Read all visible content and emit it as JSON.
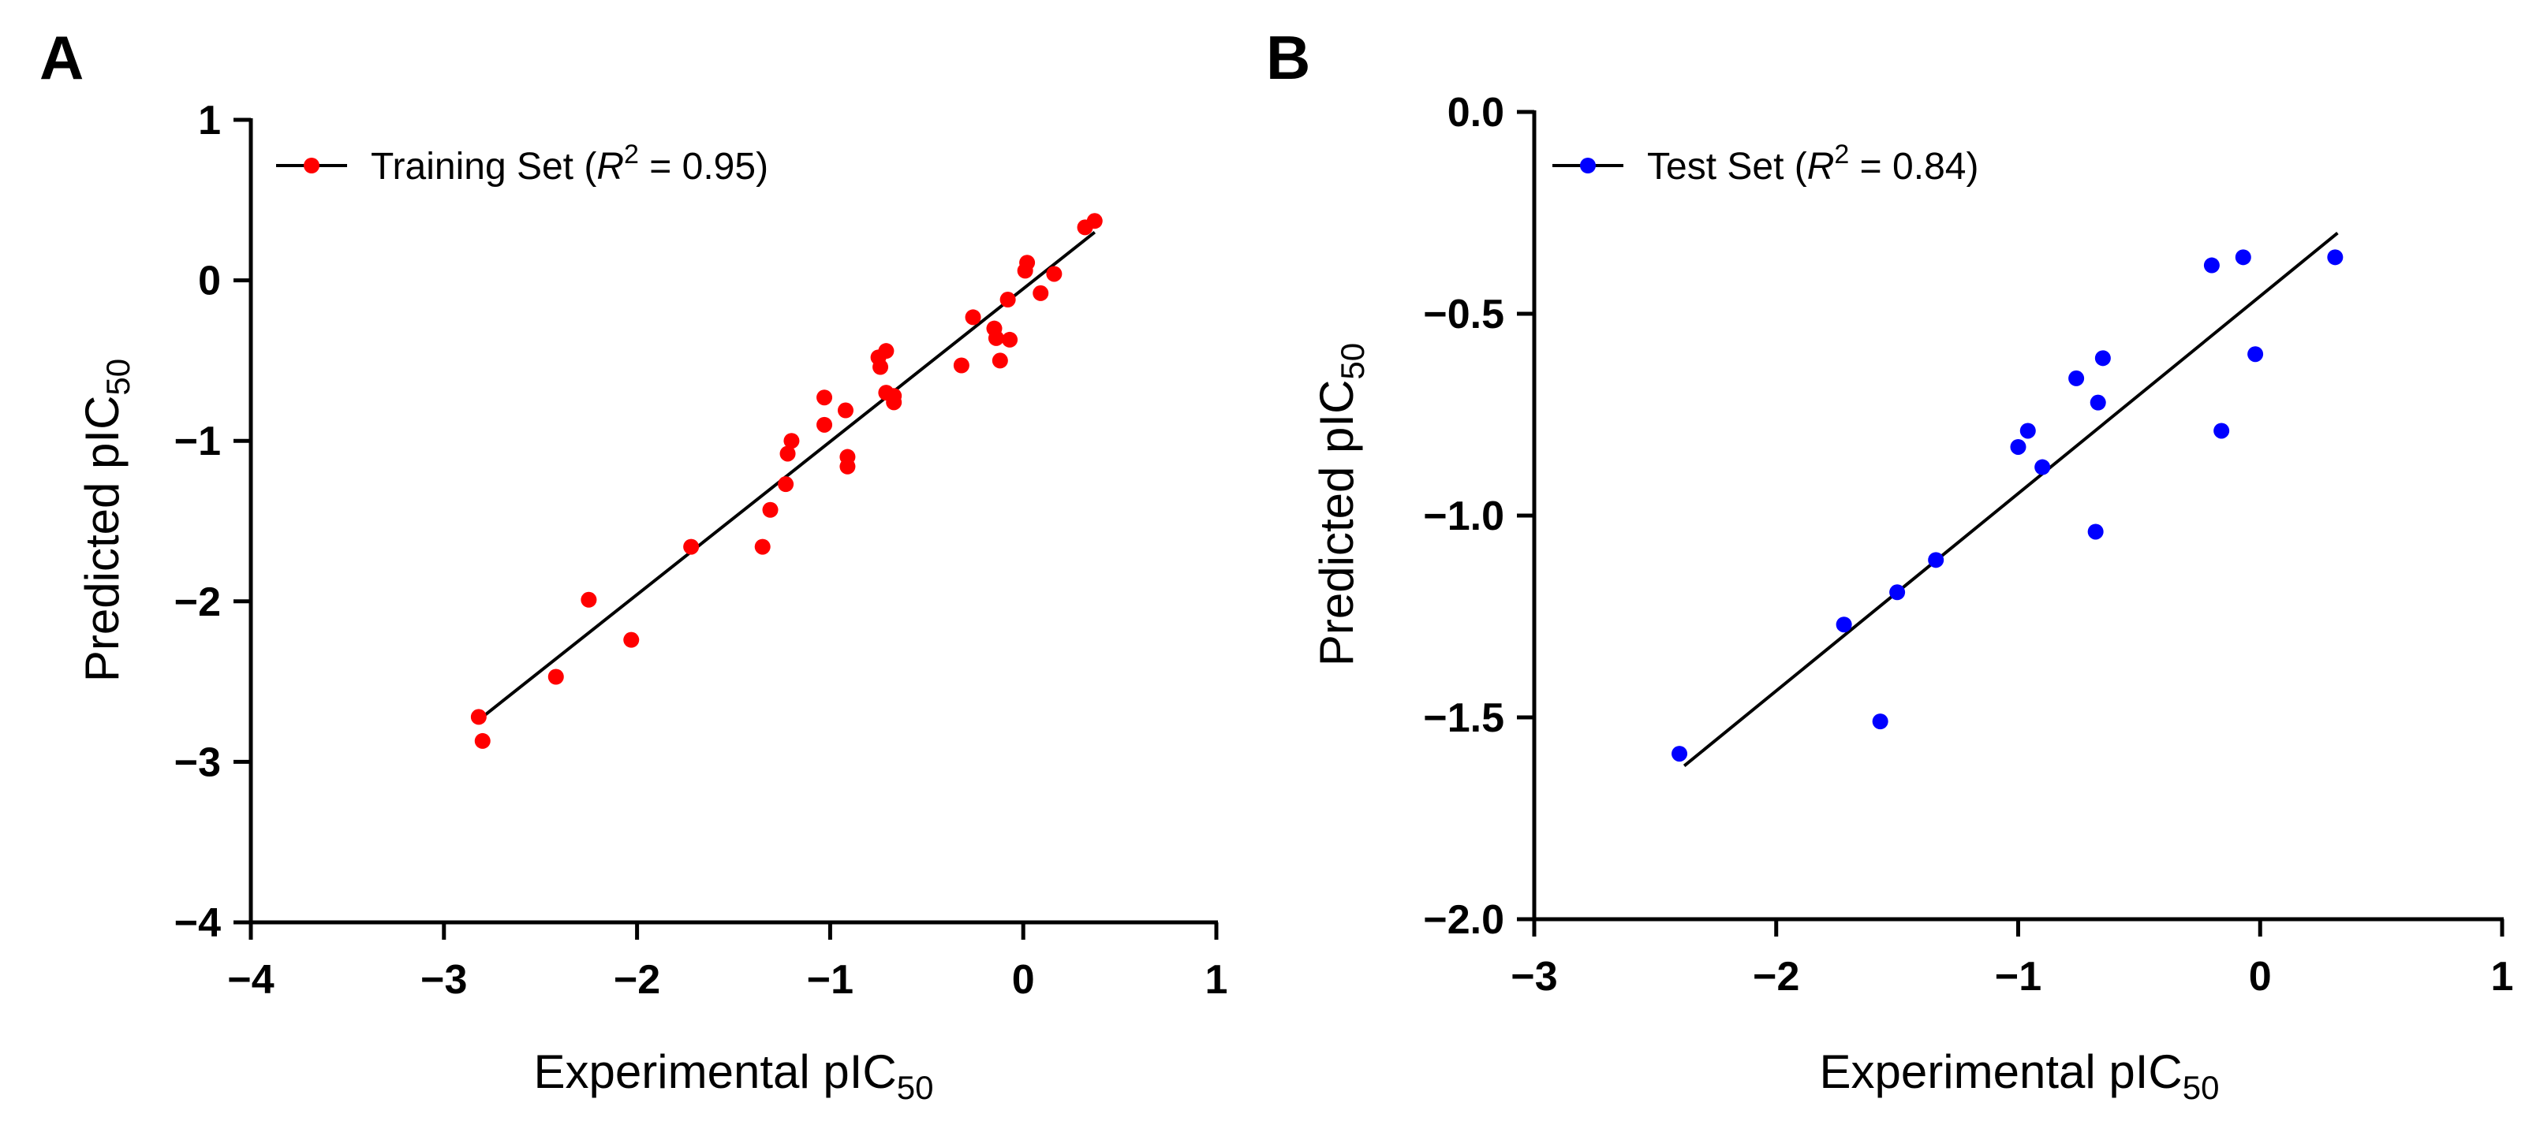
{
  "chart_data": [
    {
      "panel": "A",
      "type": "scatter",
      "xlabel": "Experimental pIC",
      "xlabel_sub": "50",
      "ylabel": "Predicted pIC",
      "ylabel_sub": "50",
      "xlim": [
        -4,
        1
      ],
      "ylim": [
        -4,
        1
      ],
      "xticks": [
        -4,
        -3,
        -2,
        -1,
        0,
        1
      ],
      "yticks": [
        -4,
        -3,
        -2,
        -1,
        0,
        1
      ],
      "xtick_labels": [
        "−4",
        "−3",
        "−2",
        "−1",
        "0",
        "1"
      ],
      "ytick_labels": [
        "−4",
        "−3",
        "−2",
        "−1",
        "0",
        "1"
      ],
      "color": "#ff0000",
      "legend": {
        "label_prefix": "Training Set (",
        "r": "R",
        "sup": "2",
        "label_suffix": " = 0.95)"
      },
      "fit_line": {
        "x": [
          -2.8,
          0.37
        ],
        "y": [
          -2.72,
          0.3
        ]
      },
      "points": [
        [
          -2.82,
          -2.72
        ],
        [
          -2.8,
          -2.87
        ],
        [
          -2.42,
          -2.47
        ],
        [
          -2.25,
          -1.99
        ],
        [
          -2.03,
          -2.24
        ],
        [
          -1.72,
          -1.66
        ],
        [
          -1.35,
          -1.66
        ],
        [
          -1.31,
          -1.43
        ],
        [
          -1.23,
          -1.27
        ],
        [
          -1.22,
          -1.08
        ],
        [
          -1.2,
          -1.0
        ],
        [
          -1.03,
          -0.73
        ],
        [
          -1.03,
          -0.9
        ],
        [
          -0.92,
          -0.81
        ],
        [
          -0.91,
          -1.1
        ],
        [
          -0.91,
          -1.16
        ],
        [
          -0.75,
          -0.48
        ],
        [
          -0.74,
          -0.54
        ],
        [
          -0.71,
          -0.44
        ],
        [
          -0.71,
          -0.7
        ],
        [
          -0.67,
          -0.72
        ],
        [
          -0.67,
          -0.76
        ],
        [
          -0.32,
          -0.53
        ],
        [
          -0.26,
          -0.23
        ],
        [
          -0.15,
          -0.3
        ],
        [
          -0.14,
          -0.36
        ],
        [
          -0.12,
          -0.5
        ],
        [
          -0.08,
          -0.12
        ],
        [
          -0.07,
          -0.37
        ],
        [
          0.01,
          0.06
        ],
        [
          0.02,
          0.11
        ],
        [
          0.09,
          -0.08
        ],
        [
          0.16,
          0.04
        ],
        [
          0.32,
          0.33
        ],
        [
          0.37,
          0.37
        ]
      ]
    },
    {
      "panel": "B",
      "type": "scatter",
      "xlabel": "Experimental pIC",
      "xlabel_sub": "50",
      "ylabel": "Predicted pIC",
      "ylabel_sub": "50",
      "xlim": [
        -3,
        1
      ],
      "ylim": [
        -2,
        0
      ],
      "xticks": [
        -3,
        -2,
        -1,
        0,
        1
      ],
      "yticks": [
        -2,
        -1.5,
        -1,
        -0.5,
        0
      ],
      "xtick_labels": [
        "−3",
        "−2",
        "−1",
        "0",
        "1"
      ],
      "ytick_labels": [
        "−2.0",
        "−1.5",
        "−1.0",
        "−0.5",
        "0.0"
      ],
      "color": "#0000ff",
      "legend": {
        "label_prefix": "Test Set (",
        "r": "R",
        "sup": "2",
        "label_suffix": " = 0.84)"
      },
      "fit_line": {
        "x": [
          -2.38,
          0.32
        ],
        "y": [
          -1.62,
          -0.3
        ]
      },
      "points": [
        [
          -2.4,
          -1.59
        ],
        [
          -1.72,
          -1.27
        ],
        [
          -1.57,
          -1.51
        ],
        [
          -1.5,
          -1.19
        ],
        [
          -1.34,
          -1.11
        ],
        [
          -1.0,
          -0.83
        ],
        [
          -0.96,
          -0.79
        ],
        [
          -0.9,
          -0.88
        ],
        [
          -0.76,
          -0.66
        ],
        [
          -0.68,
          -1.04
        ],
        [
          -0.67,
          -0.72
        ],
        [
          -0.65,
          -0.61
        ],
        [
          -0.2,
          -0.38
        ],
        [
          -0.16,
          -0.79
        ],
        [
          -0.07,
          -0.36
        ],
        [
          -0.02,
          -0.6
        ],
        [
          0.31,
          -0.36
        ]
      ]
    }
  ]
}
